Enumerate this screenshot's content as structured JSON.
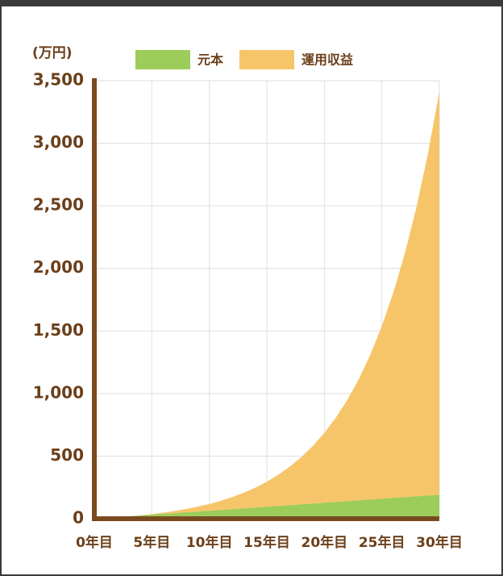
{
  "chart_data": {
    "type": "stacked_area",
    "y_label": "(万円)",
    "x": [
      0,
      1,
      2,
      3,
      4,
      5,
      6,
      7,
      8,
      9,
      10,
      11,
      12,
      13,
      14,
      15,
      16,
      17,
      18,
      19,
      20,
      21,
      22,
      23,
      24,
      25,
      26,
      27,
      28,
      29,
      30
    ],
    "series": [
      {
        "name": "元本",
        "color": "#9ccc5a",
        "values": [
          0,
          6.4,
          12.8,
          19.2,
          25.6,
          32,
          38.4,
          44.8,
          51.2,
          57.6,
          64,
          70.4,
          76.8,
          83.2,
          89.6,
          96,
          102.4,
          108.8,
          115.2,
          121.6,
          128,
          134.4,
          140.8,
          147.2,
          153.6,
          160,
          166.4,
          172.8,
          179.2,
          185.6,
          192
        ]
      },
      {
        "name": "運用収益",
        "color": "#f6c56a",
        "values": [
          0,
          0,
          0,
          0,
          1.5,
          5,
          10.1,
          17.2,
          26.6,
          38.7,
          54,
          72.9,
          96.2,
          124.5,
          158.6,
          199.7,
          248.8,
          307.4,
          377,
          459.6,
          557.3,
          672.6,
          808.7,
          969,
          1157.6,
          1379.4,
          1640,
          1945.9,
          2305,
          2726.1,
          3220
        ]
      }
    ],
    "xlim": [
      0,
      30
    ],
    "xticks": [
      {
        "value": 0,
        "label": "0年目"
      },
      {
        "value": 5,
        "label": "5年目"
      },
      {
        "value": 10,
        "label": "10年目"
      },
      {
        "value": 15,
        "label": "15年目"
      },
      {
        "value": 20,
        "label": "20年目"
      },
      {
        "value": 25,
        "label": "25年目"
      },
      {
        "value": 30,
        "label": "30年目"
      }
    ],
    "ylim": [
      0,
      3500
    ],
    "yticks": [
      0,
      500,
      {
        "value": 1000,
        "label": "1,000"
      },
      {
        "value": 1500,
        "label": "1,500"
      },
      {
        "value": 2000,
        "label": "2,000"
      },
      {
        "value": 2500,
        "label": "2,500"
      },
      {
        "value": 3000,
        "label": "3,000"
      },
      {
        "value": 3500,
        "label": "3,500"
      }
    ],
    "grid": true
  }
}
